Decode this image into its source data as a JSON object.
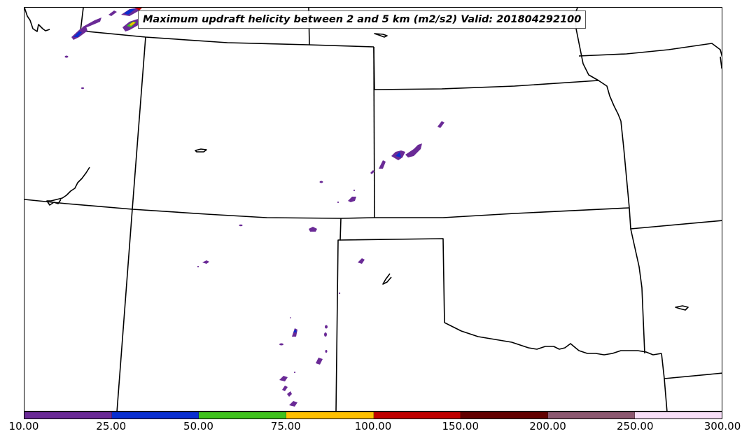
{
  "map": {
    "title": "Maximum updraft helicity between 2 and 5 km (m2/s2) Valid: 201804292100",
    "field": "updraft helicity"
  },
  "colorbar": {
    "ticks": [
      "10.00",
      "25.00",
      "50.00",
      "75.00",
      "100.00",
      "150.00",
      "200.00",
      "250.00",
      "300.00"
    ],
    "colors": [
      "#6a2a96",
      "#0a2fd0",
      "#3fc21d",
      "#ffc000",
      "#c00000",
      "#620000",
      "#8c5870",
      "#f7def7"
    ]
  }
}
